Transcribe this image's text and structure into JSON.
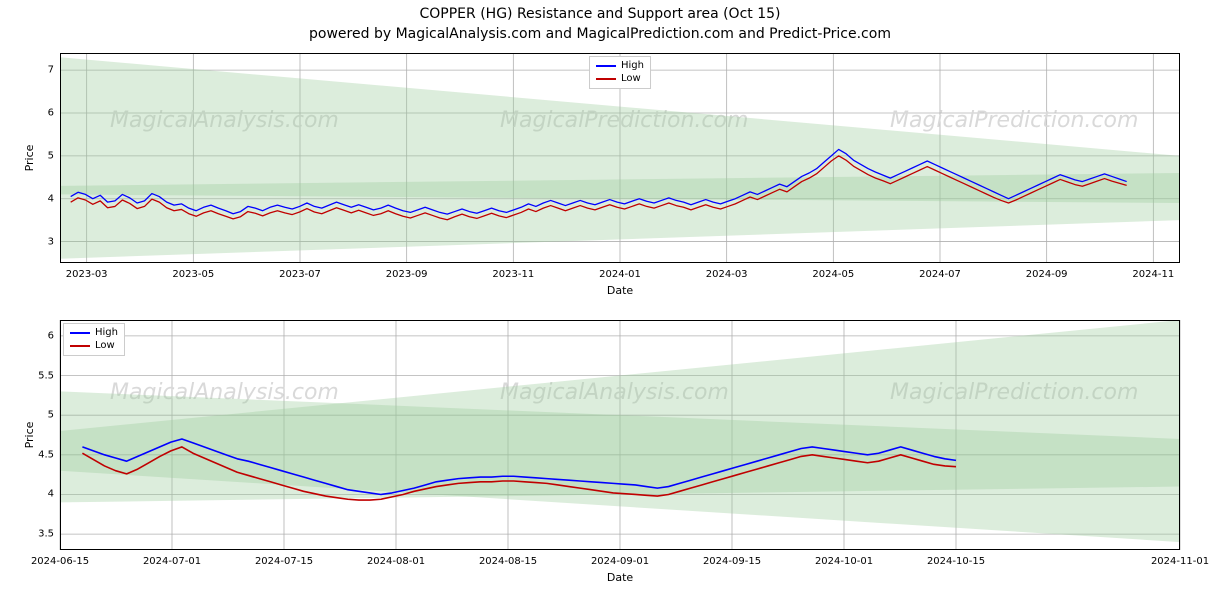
{
  "titles": {
    "main": "COPPER (HG) Resistance and Support area (Oct 15)",
    "sub": "powered by MagicalAnalysis.com and MagicalPrediction.com and Predict-Price.com"
  },
  "watermark": {
    "text": "MagicalAnalysis.com",
    "alt_text": "MagicalPrediction.com",
    "color": "#d9d9d9",
    "fontsize": 22
  },
  "legend": {
    "items": [
      {
        "label": "High",
        "color": "#0000ff"
      },
      {
        "label": "Low",
        "color": "#c00000"
      }
    ]
  },
  "colors": {
    "high_line": "#0000ff",
    "low_line": "#c00000",
    "band_fill": "#9ccc9c",
    "band_opacity": 0.35,
    "grid": "#b0b0b0",
    "background": "#ffffff",
    "border": "#000000"
  },
  "top_chart": {
    "type": "line",
    "ylabel": "Price",
    "xlabel": "Date",
    "line_width": 1.3,
    "ylim": [
      2.5,
      7.4
    ],
    "y_ticks": [
      3,
      4,
      5,
      6,
      7
    ],
    "xlim": [
      0,
      21
    ],
    "x_ticks": [
      {
        "pos": 0.5,
        "label": "2023-03"
      },
      {
        "pos": 2.5,
        "label": "2023-05"
      },
      {
        "pos": 4.5,
        "label": "2023-07"
      },
      {
        "pos": 6.5,
        "label": "2023-09"
      },
      {
        "pos": 8.5,
        "label": "2023-11"
      },
      {
        "pos": 10.5,
        "label": "2024-01"
      },
      {
        "pos": 12.5,
        "label": "2024-03"
      },
      {
        "pos": 14.5,
        "label": "2024-05"
      },
      {
        "pos": 16.5,
        "label": "2024-07"
      },
      {
        "pos": 18.5,
        "label": "2024-09"
      },
      {
        "pos": 20.5,
        "label": "2024-11"
      }
    ],
    "support_bands": [
      {
        "x": [
          0,
          21
        ],
        "y_low": [
          2.6,
          3.5
        ],
        "y_high": [
          4.3,
          4.6
        ]
      },
      {
        "x": [
          0,
          21
        ],
        "y_low": [
          4.1,
          3.9
        ],
        "y_high": [
          7.3,
          5.0
        ]
      }
    ],
    "series": {
      "high": [
        4.05,
        4.15,
        4.1,
        4.0,
        4.08,
        3.92,
        3.95,
        4.1,
        4.02,
        3.9,
        3.95,
        4.12,
        4.05,
        3.92,
        3.85,
        3.88,
        3.78,
        3.72,
        3.8,
        3.85,
        3.78,
        3.72,
        3.65,
        3.7,
        3.82,
        3.78,
        3.72,
        3.8,
        3.85,
        3.8,
        3.76,
        3.82,
        3.9,
        3.82,
        3.78,
        3.85,
        3.92,
        3.86,
        3.8,
        3.86,
        3.8,
        3.74,
        3.78,
        3.85,
        3.78,
        3.72,
        3.68,
        3.74,
        3.8,
        3.74,
        3.68,
        3.64,
        3.7,
        3.76,
        3.7,
        3.66,
        3.72,
        3.78,
        3.72,
        3.68,
        3.74,
        3.8,
        3.88,
        3.82,
        3.9,
        3.96,
        3.9,
        3.84,
        3.9,
        3.96,
        3.9,
        3.86,
        3.92,
        3.98,
        3.92,
        3.88,
        3.94,
        4.0,
        3.94,
        3.9,
        3.96,
        4.02,
        3.96,
        3.92,
        3.86,
        3.92,
        3.98,
        3.92,
        3.88,
        3.94,
        4.0,
        4.08,
        4.16,
        4.1,
        4.18,
        4.26,
        4.34,
        4.28,
        4.4,
        4.52,
        4.6,
        4.7,
        4.85,
        5.0,
        5.15,
        5.05,
        4.9,
        4.8,
        4.7,
        4.62,
        4.55,
        4.48,
        4.56,
        4.64,
        4.72,
        4.8,
        4.88,
        4.8,
        4.72,
        4.64,
        4.56,
        4.48,
        4.4,
        4.32,
        4.24,
        4.16,
        4.08,
        4.0,
        4.08,
        4.16,
        4.24,
        4.32,
        4.4,
        4.48,
        4.56,
        4.5,
        4.44,
        4.4,
        4.46,
        4.52,
        4.58,
        4.52,
        4.46,
        4.4
      ],
      "low": [
        3.92,
        4.02,
        3.97,
        3.87,
        3.95,
        3.79,
        3.82,
        3.97,
        3.89,
        3.77,
        3.82,
        3.99,
        3.92,
        3.79,
        3.72,
        3.75,
        3.65,
        3.59,
        3.67,
        3.72,
        3.65,
        3.59,
        3.53,
        3.58,
        3.7,
        3.66,
        3.6,
        3.67,
        3.72,
        3.67,
        3.63,
        3.69,
        3.77,
        3.69,
        3.65,
        3.72,
        3.79,
        3.73,
        3.67,
        3.73,
        3.67,
        3.61,
        3.65,
        3.72,
        3.65,
        3.59,
        3.55,
        3.61,
        3.67,
        3.61,
        3.55,
        3.51,
        3.58,
        3.64,
        3.58,
        3.54,
        3.6,
        3.66,
        3.6,
        3.56,
        3.62,
        3.68,
        3.76,
        3.7,
        3.78,
        3.84,
        3.78,
        3.72,
        3.78,
        3.84,
        3.78,
        3.74,
        3.8,
        3.86,
        3.8,
        3.76,
        3.82,
        3.88,
        3.82,
        3.78,
        3.84,
        3.9,
        3.84,
        3.8,
        3.74,
        3.8,
        3.86,
        3.8,
        3.76,
        3.82,
        3.88,
        3.96,
        4.04,
        3.98,
        4.06,
        4.14,
        4.22,
        4.16,
        4.28,
        4.4,
        4.48,
        4.58,
        4.73,
        4.88,
        5.0,
        4.9,
        4.76,
        4.66,
        4.56,
        4.48,
        4.42,
        4.35,
        4.43,
        4.51,
        4.59,
        4.67,
        4.75,
        4.67,
        4.59,
        4.51,
        4.43,
        4.35,
        4.27,
        4.19,
        4.11,
        4.03,
        3.96,
        3.9,
        3.97,
        4.05,
        4.13,
        4.21,
        4.29,
        4.37,
        4.45,
        4.39,
        4.33,
        4.29,
        4.35,
        4.41,
        4.47,
        4.41,
        4.36,
        4.31
      ]
    },
    "legend_position": "top-center"
  },
  "bottom_chart": {
    "type": "line",
    "ylabel": "Price",
    "xlabel": "Date",
    "line_width": 1.6,
    "ylim": [
      3.3,
      6.2
    ],
    "y_ticks": [
      3.5,
      4.0,
      4.5,
      5.0,
      5.5,
      6.0
    ],
    "xlim": [
      0,
      10
    ],
    "x_ticks": [
      {
        "pos": 0.0,
        "label": "2024-06-15"
      },
      {
        "pos": 1.0,
        "label": "2024-07-01"
      },
      {
        "pos": 2.0,
        "label": "2024-07-15"
      },
      {
        "pos": 3.0,
        "label": "2024-08-01"
      },
      {
        "pos": 4.0,
        "label": "2024-08-15"
      },
      {
        "pos": 5.0,
        "label": "2024-09-01"
      },
      {
        "pos": 6.0,
        "label": "2024-09-15"
      },
      {
        "pos": 7.0,
        "label": "2024-10-01"
      },
      {
        "pos": 8.0,
        "label": "2024-10-15"
      },
      {
        "pos": 10.0,
        "label": "2024-11-01"
      }
    ],
    "support_bands": [
      {
        "x": [
          0,
          10
        ],
        "y_low": [
          3.9,
          4.1
        ],
        "y_high": [
          5.3,
          4.7
        ]
      },
      {
        "x": [
          0,
          10
        ],
        "y_low": [
          4.3,
          3.4
        ],
        "y_high": [
          4.8,
          6.2
        ]
      }
    ],
    "series": {
      "high": [
        4.6,
        4.55,
        4.5,
        4.46,
        4.42,
        4.48,
        4.54,
        4.6,
        4.66,
        4.7,
        4.65,
        4.6,
        4.55,
        4.5,
        4.45,
        4.42,
        4.38,
        4.34,
        4.3,
        4.26,
        4.22,
        4.18,
        4.14,
        4.1,
        4.06,
        4.04,
        4.02,
        4.0,
        4.02,
        4.05,
        4.08,
        4.12,
        4.16,
        4.18,
        4.2,
        4.21,
        4.22,
        4.22,
        4.23,
        4.23,
        4.22,
        4.21,
        4.2,
        4.19,
        4.18,
        4.17,
        4.16,
        4.15,
        4.14,
        4.13,
        4.12,
        4.1,
        4.08,
        4.1,
        4.14,
        4.18,
        4.22,
        4.26,
        4.3,
        4.34,
        4.38,
        4.42,
        4.46,
        4.5,
        4.54,
        4.58,
        4.6,
        4.58,
        4.56,
        4.54,
        4.52,
        4.5,
        4.52,
        4.56,
        4.6,
        4.56,
        4.52,
        4.48,
        4.45,
        4.43
      ],
      "low": [
        4.52,
        4.44,
        4.36,
        4.3,
        4.26,
        4.32,
        4.4,
        4.48,
        4.55,
        4.6,
        4.52,
        4.46,
        4.4,
        4.34,
        4.28,
        4.24,
        4.2,
        4.16,
        4.12,
        4.08,
        4.04,
        4.01,
        3.98,
        3.96,
        3.94,
        3.93,
        3.93,
        3.94,
        3.97,
        4.0,
        4.04,
        4.07,
        4.1,
        4.12,
        4.14,
        4.15,
        4.16,
        4.16,
        4.17,
        4.17,
        4.16,
        4.15,
        4.14,
        4.12,
        4.1,
        4.08,
        4.06,
        4.04,
        4.02,
        4.01,
        4.0,
        3.99,
        3.98,
        4.0,
        4.04,
        4.08,
        4.12,
        4.16,
        4.2,
        4.24,
        4.28,
        4.32,
        4.36,
        4.4,
        4.44,
        4.48,
        4.5,
        4.48,
        4.46,
        4.44,
        4.42,
        4.4,
        4.42,
        4.46,
        4.5,
        4.46,
        4.42,
        4.38,
        4.36,
        4.35
      ]
    },
    "legend_position": "top-left"
  }
}
